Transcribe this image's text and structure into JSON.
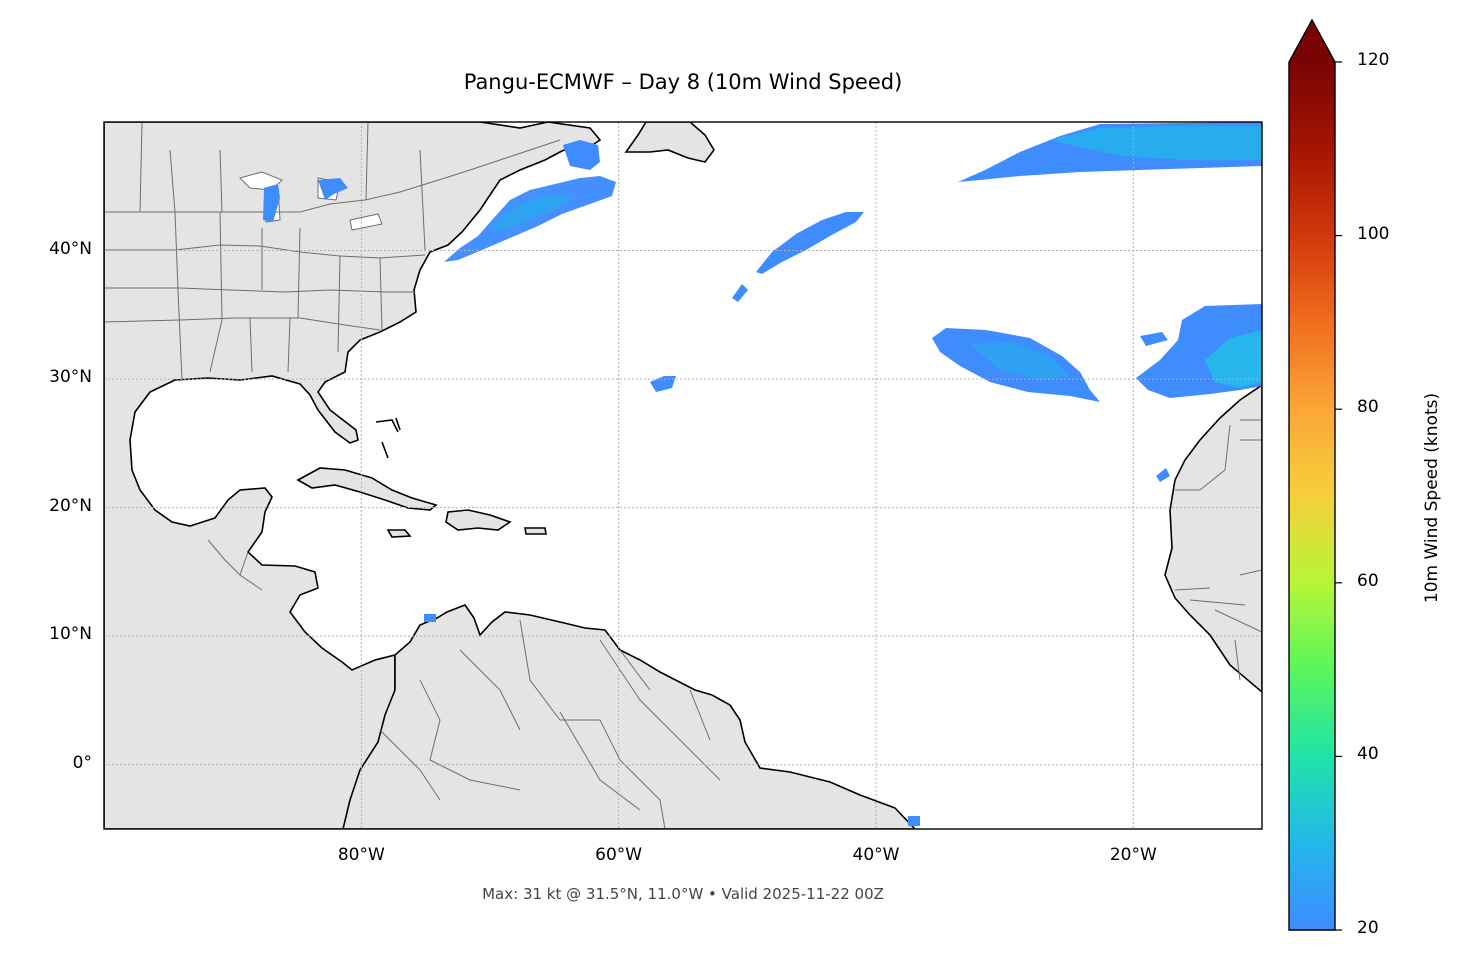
{
  "title": "Pangu-ECMWF – Day 8 (10m Wind Speed)",
  "footer": "Max: 31 kt @ 31.5°N, 11.0°W • Valid 2025-11-22 00Z",
  "map": {
    "extent": {
      "lon_min": -100,
      "lon_max": -10,
      "lat_min": -5,
      "lat_max": 50
    },
    "lat_ticks": [
      {
        "value": 40,
        "label": "40°N"
      },
      {
        "value": 30,
        "label": "30°N"
      },
      {
        "value": 20,
        "label": "20°N"
      },
      {
        "value": 10,
        "label": "10°N"
      },
      {
        "value": 0,
        "label": "0°"
      }
    ],
    "lon_ticks": [
      {
        "value": -80,
        "label": "80°W"
      },
      {
        "value": -60,
        "label": "60°W"
      },
      {
        "value": -40,
        "label": "40°W"
      },
      {
        "value": -20,
        "label": "20°W"
      }
    ],
    "land_color": "#e4e4e4",
    "coast_color": "#000000",
    "border_color": "#6e6e6e",
    "grid": true,
    "max_wind": {
      "value_kt": 31,
      "lat": 31.5,
      "lon": -11.0
    }
  },
  "colorbar": {
    "label": "10m Wind Speed (knots)",
    "min": 20,
    "max": 120,
    "extend": "max",
    "ticks": [
      {
        "value": 20,
        "label": "20"
      },
      {
        "value": 40,
        "label": "40"
      },
      {
        "value": 60,
        "label": "60"
      },
      {
        "value": 80,
        "label": "80"
      },
      {
        "value": 100,
        "label": "100"
      },
      {
        "value": 120,
        "label": "120"
      }
    ],
    "colormap": [
      "#3f8cff",
      "#22b8ea",
      "#1fe3a8",
      "#5af55c",
      "#b7f536",
      "#f5d03a",
      "#fba637",
      "#f06d1f",
      "#d2380d",
      "#a51403",
      "#7a0403"
    ]
  }
}
